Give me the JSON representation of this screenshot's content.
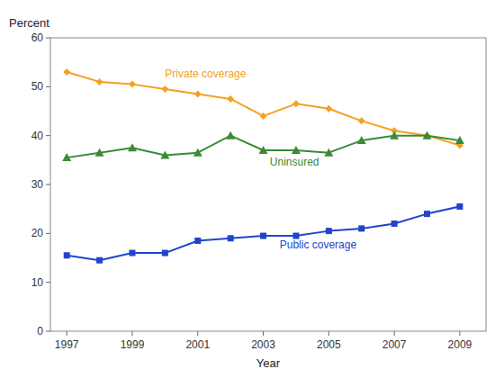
{
  "chart_data": {
    "type": "line",
    "x_label": "Year",
    "y_label": "Percent",
    "x": [
      1997,
      1998,
      1999,
      2000,
      2001,
      2002,
      2003,
      2004,
      2005,
      2006,
      2007,
      2008,
      2009
    ],
    "series": [
      {
        "color": "#F5A020",
        "marker": "diamond",
        "values": [
          53.0,
          51.0,
          50.5,
          49.5,
          48.5,
          47.5,
          44.0,
          46.5,
          45.5,
          43.0,
          41.0,
          40.0,
          38.0
        ]
      },
      {
        "color": "#3A8A3A",
        "marker": "triangle",
        "values": [
          35.5,
          36.5,
          37.5,
          36.0,
          36.5,
          40.0,
          37.0,
          37.0,
          36.5,
          39.0,
          40.0,
          40.0,
          39.0
        ]
      },
      {
        "color": "#2244CC",
        "marker": "square",
        "values": [
          15.5,
          14.5,
          16.0,
          16.0,
          18.5,
          19.0,
          19.5,
          19.5,
          20.5,
          21.0,
          22.0,
          24.0,
          25.5
        ]
      }
    ],
    "annotations": [
      {
        "text": "Private coverage",
        "x": 2000.0,
        "y": 51.5,
        "color": "#F5A020"
      },
      {
        "text": "Uninsured",
        "x": 2003.2,
        "y": 33.5,
        "color": "#3A8A3A"
      },
      {
        "text": "Public coverage",
        "x": 2003.5,
        "y": 16.5,
        "color": "#2244CC"
      }
    ],
    "xlim": [
      1996.5,
      2009.8
    ],
    "ylim": [
      0,
      60
    ],
    "xticks": [
      1997,
      1999,
      2001,
      2003,
      2005,
      2007,
      2009
    ],
    "yticks": [
      0,
      10,
      20,
      30,
      40,
      50,
      60
    ],
    "grid": false
  }
}
